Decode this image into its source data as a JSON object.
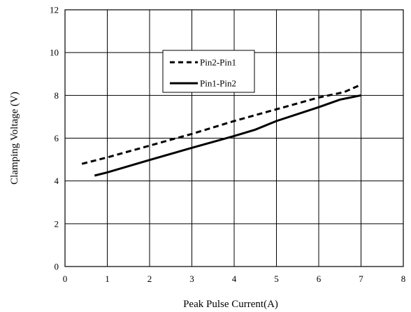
{
  "chart_data": {
    "type": "line",
    "title": "",
    "xlabel": "Peak Pulse Current(A)",
    "ylabel": "Clamping Voltage (V)",
    "xlim": [
      0,
      8
    ],
    "ylim": [
      0,
      12
    ],
    "xticks": [
      0,
      1,
      2,
      3,
      4,
      5,
      6,
      7,
      8
    ],
    "yticks": [
      0,
      2,
      4,
      6,
      8,
      10,
      12
    ],
    "grid": true,
    "legend_position": "top-center",
    "series": [
      {
        "name": "Pin2-Pin1",
        "style": "dashed",
        "color": "#000000",
        "x": [
          0.4,
          1,
          2,
          3,
          4,
          5,
          6,
          6.6,
          7
        ],
        "y": [
          4.8,
          5.1,
          5.65,
          6.2,
          6.8,
          7.35,
          7.9,
          8.15,
          8.5
        ]
      },
      {
        "name": "Pin1-Pin2",
        "style": "solid",
        "color": "#000000",
        "x": [
          0.7,
          1,
          2,
          3,
          4,
          4.5,
          5,
          6,
          6.5,
          7
        ],
        "y": [
          4.25,
          4.4,
          4.98,
          5.55,
          6.1,
          6.4,
          6.8,
          7.45,
          7.8,
          8.0
        ]
      }
    ]
  }
}
